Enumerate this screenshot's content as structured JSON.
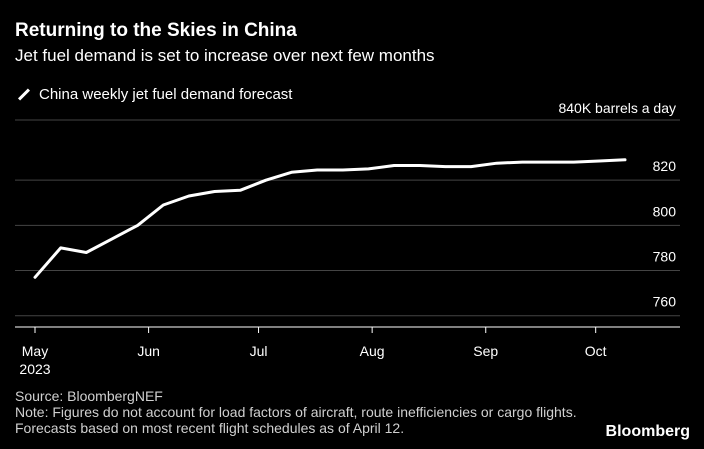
{
  "header": {
    "title": "Returning to the Skies in China",
    "subtitle": "Jet fuel demand is set to increase over next few months"
  },
  "legend": {
    "label": "China weekly jet fuel demand forecast"
  },
  "footer": {
    "source": "Source: BloombergNEF",
    "note": "Note: Figures do not account for load factors of aircraft, route inefficiencies or cargo flights. Forecasts based on most recent flight schedules as of April 12."
  },
  "brand": "Bloomberg",
  "colors": {
    "background": "#000000",
    "line": "#ffffff",
    "grid": "#444444"
  },
  "chart_data": {
    "type": "line",
    "title": "Returning to the Skies in China",
    "subtitle": "Jet fuel demand is set to increase over next few months",
    "ylabel": "",
    "xlabel": "",
    "unit_label": "840K barrels a day",
    "ylim": [
      755,
      840
    ],
    "yticks": [
      760,
      780,
      800,
      820
    ],
    "xlim": [
      "2023-05-01",
      "2023-10-31"
    ],
    "x_ticks": [
      {
        "date": "2023-05-01",
        "label": "May",
        "sublabel": "2023"
      },
      {
        "date": "2023-06-01",
        "label": "Jun",
        "sublabel": ""
      },
      {
        "date": "2023-07-01",
        "label": "Jul",
        "sublabel": ""
      },
      {
        "date": "2023-08-01",
        "label": "Aug",
        "sublabel": ""
      },
      {
        "date": "2023-09-01",
        "label": "Sep",
        "sublabel": ""
      },
      {
        "date": "2023-10-01",
        "label": "Oct",
        "sublabel": ""
      }
    ],
    "grid": true,
    "legend_position": "top-left",
    "series": [
      {
        "name": "China weekly jet fuel demand forecast",
        "x": [
          "2023-05-01",
          "2023-05-08",
          "2023-05-15",
          "2023-05-22",
          "2023-05-29",
          "2023-06-05",
          "2023-06-12",
          "2023-06-19",
          "2023-06-26",
          "2023-07-03",
          "2023-07-10",
          "2023-07-17",
          "2023-07-24",
          "2023-07-31",
          "2023-08-07",
          "2023-08-14",
          "2023-08-21",
          "2023-08-28",
          "2023-09-04",
          "2023-09-11",
          "2023-09-18",
          "2023-09-25",
          "2023-10-02",
          "2023-10-09"
        ],
        "values": [
          777,
          790,
          788,
          794,
          800,
          809,
          813,
          815,
          815.5,
          820,
          823.5,
          824.5,
          824.5,
          825,
          826.5,
          826.5,
          826,
          826,
          827.5,
          828,
          828,
          828,
          828.5,
          829
        ]
      }
    ]
  }
}
